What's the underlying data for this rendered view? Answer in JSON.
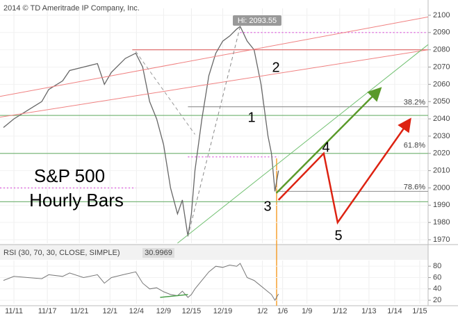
{
  "chart_data": {
    "type": "line",
    "copyright": "2014 © TD Ameritrade IP Company, Inc.",
    "title": "S&P 500",
    "subtitle": "Hourly Bars",
    "high_label": "Hi: 2093.55",
    "wave_labels": [
      "1",
      "2",
      "3",
      "4",
      "5"
    ],
    "fib_labels": [
      {
        "value": 2047,
        "label": "38.2%"
      },
      {
        "value": 2022,
        "label": "61.8%"
      },
      {
        "value": 1998,
        "label": "78.6%"
      }
    ],
    "xlim": [
      0,
      123
    ],
    "xticks": [
      {
        "value": 4,
        "label": "11/11"
      },
      {
        "value": 13.6,
        "label": "11/17"
      },
      {
        "value": 22.8,
        "label": "11/21"
      },
      {
        "value": 31.6,
        "label": "12/1"
      },
      {
        "value": 39.2,
        "label": "12/4"
      },
      {
        "value": 47,
        "label": "12/9"
      },
      {
        "value": 55,
        "label": "12/15"
      },
      {
        "value": 64,
        "label": "12/19"
      },
      {
        "value": 75.4,
        "label": "1/2"
      },
      {
        "value": 81.2,
        "label": "1/6"
      },
      {
        "value": 88.2,
        "label": "1/9"
      },
      {
        "value": 97.6,
        "label": "1/12"
      },
      {
        "value": 106,
        "label": "1/13"
      },
      {
        "value": 113.4,
        "label": "1/14"
      },
      {
        "value": 120.6,
        "label": "1/15"
      }
    ],
    "ylim": [
      1968,
      2104
    ],
    "yticks": [
      1970,
      1980,
      1990,
      2000,
      2010,
      2020,
      2030,
      2040,
      2050,
      2060,
      2070,
      2080,
      2090,
      2100
    ],
    "grid": true,
    "x": [
      1,
      4,
      8,
      12,
      14,
      18,
      20,
      24,
      28,
      30,
      32,
      36,
      39,
      41,
      43,
      45,
      47,
      49,
      51,
      52.4,
      54,
      55,
      56,
      58,
      60,
      62,
      64,
      66,
      68,
      69,
      71,
      73,
      75,
      76,
      77,
      78,
      79,
      80
    ],
    "series": [
      {
        "name": "S&P 500",
        "color": "#666666",
        "values": [
          2035,
          2040,
          2045,
          2050,
          2057,
          2062,
          2068,
          2070,
          2072,
          2060,
          2067,
          2075,
          2078,
          2070,
          2050,
          2040,
          2025,
          2000,
          1985,
          1993,
          1972,
          1985,
          2010,
          2040,
          2065,
          2078,
          2085,
          2088,
          2092,
          2093.55,
          2085,
          2080,
          2060,
          2045,
          2030,
          2020,
          1998,
          2010
        ]
      }
    ],
    "levels": [
      {
        "value": 2042,
        "from": 0,
        "to": 123,
        "color": "#7cb87c",
        "dashed": false
      },
      {
        "value": 2020,
        "from": 0,
        "to": 123,
        "color": "#7cb87c",
        "dashed": false
      },
      {
        "value": 1992,
        "from": 0,
        "to": 123,
        "color": "#7cb87c",
        "dashed": false
      },
      {
        "value": 2047,
        "from": 54,
        "to": 123,
        "color": "#999999",
        "dashed": false
      },
      {
        "value": 1998,
        "from": 80,
        "to": 123,
        "color": "#999999",
        "dashed": false
      },
      {
        "value": 2080,
        "from": 38,
        "to": 123,
        "color": "#e07070",
        "dashed": false
      },
      {
        "value": 2090,
        "from": 69,
        "to": 123,
        "color": "#e070e0",
        "dashed": true
      },
      {
        "value": 2018,
        "from": 54,
        "to": 80,
        "color": "#e070e0",
        "dashed": true
      },
      {
        "value": 2000,
        "from": 0,
        "to": 39,
        "color": "#e070e0",
        "dashed": true
      }
    ],
    "lines": [
      {
        "x": [
          0,
          123
        ],
        "y": [
          2053,
          2099
        ],
        "color": "#f08080",
        "dashed": false,
        "arrow": false
      },
      {
        "x": [
          0,
          123
        ],
        "y": [
          2041,
          2080
        ],
        "color": "#f08080",
        "dashed": false,
        "arrow": false
      },
      {
        "x": [
          51,
          123
        ],
        "y": [
          1968,
          2083
        ],
        "color": "#70c070",
        "dashed": false,
        "arrow": false
      },
      {
        "x": [
          39,
          56
        ],
        "y": [
          2079,
          2031
        ],
        "color": "#999999",
        "dashed": true,
        "arrow": false
      },
      {
        "x": [
          54,
          69
        ],
        "y": [
          1972,
          2093.55
        ],
        "color": "#888888",
        "dashed": true,
        "arrow": false
      },
      {
        "x": [
          79.4,
          109
        ],
        "y": [
          1997,
          2057
        ],
        "color": "#5a9a2a",
        "dashed": false,
        "arrow": true
      },
      {
        "x": [
          80,
          93,
          97,
          117.6
        ],
        "y": [
          1993,
          2020,
          1980,
          2039
        ],
        "color": "#dd2211",
        "dashed": false,
        "arrow": true
      }
    ],
    "rsi": {
      "label": "RSI (30, 70, 30, CLOSE, SIMPLE)",
      "last": "30.9969",
      "ylim": [
        14,
        90
      ],
      "yticks": [
        20,
        40,
        60,
        80
      ],
      "color": "#777777",
      "values": [
        55,
        62,
        60,
        58,
        65,
        62,
        68,
        60,
        65,
        50,
        60,
        66,
        70,
        50,
        40,
        42,
        35,
        30,
        28,
        36,
        25,
        30,
        40,
        55,
        70,
        80,
        78,
        82,
        80,
        85,
        60,
        55,
        45,
        40,
        35,
        30,
        20,
        31
      ],
      "trend": {
        "x": [
          46,
          54
        ],
        "y": [
          25,
          30
        ],
        "color": "#4aa04a"
      }
    }
  }
}
